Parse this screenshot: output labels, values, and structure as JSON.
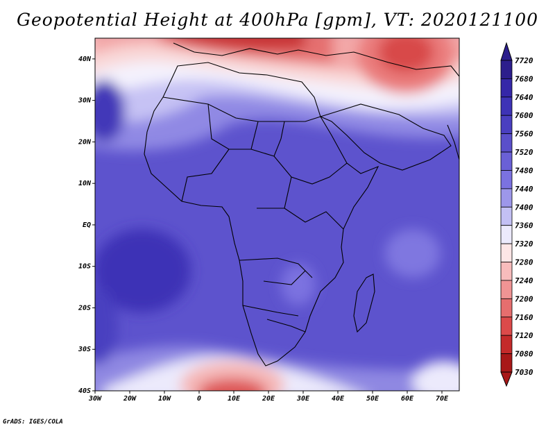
{
  "title": "Geopotential Height at 400hPa [gpm], VT: 2020121100",
  "credit": "GrADS: IGES/COLA",
  "map": {
    "lon_range": [
      -30,
      75
    ],
    "lat_range": [
      -40,
      45
    ],
    "lon_ticks": [
      {
        "value": -30,
        "label": "30W"
      },
      {
        "value": -20,
        "label": "20W"
      },
      {
        "value": -10,
        "label": "10W"
      },
      {
        "value": 0,
        "label": "0"
      },
      {
        "value": 10,
        "label": "10E"
      },
      {
        "value": 20,
        "label": "20E"
      },
      {
        "value": 30,
        "label": "30E"
      },
      {
        "value": 40,
        "label": "40E"
      },
      {
        "value": 50,
        "label": "50E"
      },
      {
        "value": 60,
        "label": "60E"
      },
      {
        "value": 70,
        "label": "70E"
      }
    ],
    "lat_ticks": [
      {
        "value": 40,
        "label": "40N"
      },
      {
        "value": 30,
        "label": "30N"
      },
      {
        "value": 20,
        "label": "20N"
      },
      {
        "value": 10,
        "label": "10N"
      },
      {
        "value": 0,
        "label": "EQ"
      },
      {
        "value": -10,
        "label": "10S"
      },
      {
        "value": -20,
        "label": "20S"
      },
      {
        "value": -30,
        "label": "30S"
      },
      {
        "value": -40,
        "label": "40S"
      }
    ]
  },
  "colorbar": {
    "levels": [
      "7720",
      "7680",
      "7640",
      "7600",
      "7560",
      "7520",
      "7480",
      "7440",
      "7400",
      "7360",
      "7320",
      "7280",
      "7240",
      "7200",
      "7160",
      "7120",
      "7080",
      "7030"
    ],
    "colors_high_to_low": [
      "#2c1e8c",
      "#3527a8",
      "#3e33b6",
      "#4a3fc0",
      "#5a4fca",
      "#6a60d6",
      "#7b72e0",
      "#9d97ea",
      "#c3c0f4",
      "#eceafc",
      "#fde6e6",
      "#f8bcbc",
      "#f09494",
      "#e66e6e",
      "#dc4a4a",
      "#c42a2a",
      "#a81818"
    ]
  },
  "chart_data": {
    "type": "heatmap",
    "title": "Geopotential Height at 400hPa [gpm], VT: 2020121100",
    "xlabel": "",
    "ylabel": "",
    "xlim": [
      -30,
      75
    ],
    "ylim": [
      -40,
      45
    ],
    "colorbar_levels": [
      7030,
      7080,
      7120,
      7160,
      7200,
      7240,
      7280,
      7320,
      7360,
      7400,
      7440,
      7480,
      7520,
      7560,
      7600,
      7640,
      7680,
      7720
    ]
  }
}
